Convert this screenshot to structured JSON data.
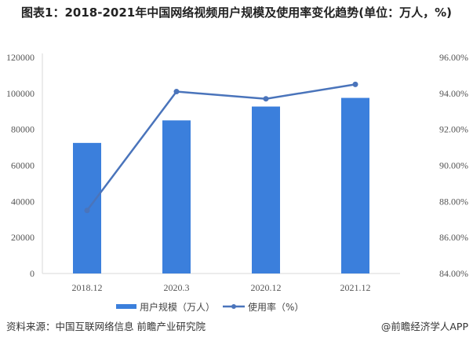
{
  "title": "图表1：2018-2021年中国网络视频用户规模及使用率变化趋势(单位：万人，%)",
  "source": "资料来源：中国互联网络信息 前瞻产业研究院",
  "credit": "@前瞻经济学人APP",
  "colors": {
    "bar": "#3b7fdc",
    "line": "#4a74bb"
  },
  "chart_data": {
    "type": "bar+line",
    "categories": [
      "2018.12",
      "2020.3",
      "2020.12",
      "2021.12"
    ],
    "series": [
      {
        "name": "用户规模（万人）",
        "type": "bar",
        "axis": "left",
        "values": [
          72500,
          85000,
          92700,
          97500
        ]
      },
      {
        "name": "使用率（%）",
        "type": "line",
        "axis": "right",
        "values": [
          87.5,
          94.1,
          93.7,
          94.5
        ]
      }
    ],
    "left_axis": {
      "ylim": [
        0,
        120000
      ],
      "ticks": [
        "0",
        "20000",
        "40000",
        "60000",
        "80000",
        "100000",
        "120000"
      ]
    },
    "right_axis": {
      "ylim": [
        84,
        96
      ],
      "ticks": [
        "84.00%",
        "86.00%",
        "88.00%",
        "90.00%",
        "92.00%",
        "94.00%",
        "96.00%"
      ]
    },
    "grid": false,
    "legend": "bottom"
  }
}
